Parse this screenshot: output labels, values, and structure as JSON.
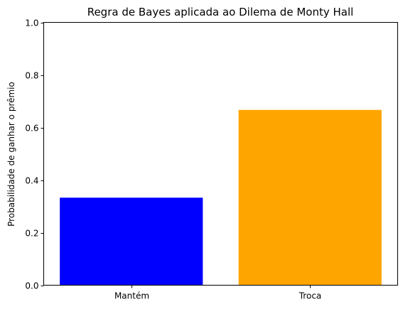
{
  "chart_data": {
    "type": "bar",
    "title": "Regra de Bayes aplicada ao Dilema de Monty Hall",
    "xlabel": "",
    "ylabel": "Probabilidade de ganhar o prêmio",
    "categories": [
      "Mantém",
      "Troca"
    ],
    "values": [
      0.333,
      0.667
    ],
    "colors": [
      "#0000ff",
      "#ffa500"
    ],
    "ylim": [
      0,
      1.0
    ],
    "yticks": [
      "0.0",
      "0.2",
      "0.4",
      "0.6",
      "0.8",
      "1.0"
    ],
    "grid": false,
    "legend": "none"
  }
}
